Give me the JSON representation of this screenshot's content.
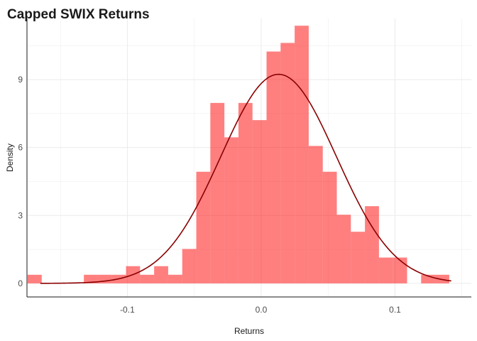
{
  "chart_data": {
    "type": "histogram",
    "title": "Capped SWIX Returns",
    "xlabel": "Returns",
    "ylabel": "Density",
    "xlim": [
      -0.175,
      0.157
    ],
    "ylim": [
      -0.6,
      11.7
    ],
    "x_ticks": [
      -0.1,
      0.0,
      0.1
    ],
    "x_tick_labels": [
      "-0.1",
      "0.0",
      "0.1"
    ],
    "y_ticks": [
      0,
      3,
      6,
      9
    ],
    "y_tick_labels": [
      "0",
      "3",
      "6",
      "9"
    ],
    "grid": true,
    "bin_width": 0.0105,
    "bins": [
      {
        "x0": -0.1745,
        "density": 0.38
      },
      {
        "x0": -0.164,
        "density": 0
      },
      {
        "x0": -0.1535,
        "density": 0
      },
      {
        "x0": -0.143,
        "density": 0
      },
      {
        "x0": -0.1325,
        "density": 0.38
      },
      {
        "x0": -0.122,
        "density": 0.38
      },
      {
        "x0": -0.1115,
        "density": 0.38
      },
      {
        "x0": -0.101,
        "density": 0.76
      },
      {
        "x0": -0.0905,
        "density": 0.38
      },
      {
        "x0": -0.08,
        "density": 0.76
      },
      {
        "x0": -0.0695,
        "density": 0.38
      },
      {
        "x0": -0.059,
        "density": 1.52
      },
      {
        "x0": -0.0485,
        "density": 4.93
      },
      {
        "x0": -0.038,
        "density": 7.97
      },
      {
        "x0": -0.0275,
        "density": 6.45
      },
      {
        "x0": -0.017,
        "density": 7.97
      },
      {
        "x0": -0.0065,
        "density": 7.21
      },
      {
        "x0": 0.004,
        "density": 10.24
      },
      {
        "x0": 0.0145,
        "density": 10.62
      },
      {
        "x0": 0.025,
        "density": 11.38
      },
      {
        "x0": 0.0355,
        "density": 6.07
      },
      {
        "x0": 0.046,
        "density": 4.93
      },
      {
        "x0": 0.0565,
        "density": 3.03
      },
      {
        "x0": 0.067,
        "density": 2.28
      },
      {
        "x0": 0.0775,
        "density": 3.41
      },
      {
        "x0": 0.088,
        "density": 1.14
      },
      {
        "x0": 0.0985,
        "density": 1.14
      },
      {
        "x0": 0.109,
        "density": 0
      },
      {
        "x0": 0.1195,
        "density": 0.38
      },
      {
        "x0": 0.13,
        "density": 0.38
      }
    ],
    "density_curve": {
      "type": "normal",
      "mean": 0.013,
      "sd": 0.0432,
      "x_range": [
        -0.165,
        0.142
      ]
    },
    "colors": {
      "bars": "#ff0000",
      "bar_opacity": 0.5,
      "curve": "#8b0000",
      "axis": "#1a1a1a",
      "grid": "#ebebeb"
    }
  }
}
